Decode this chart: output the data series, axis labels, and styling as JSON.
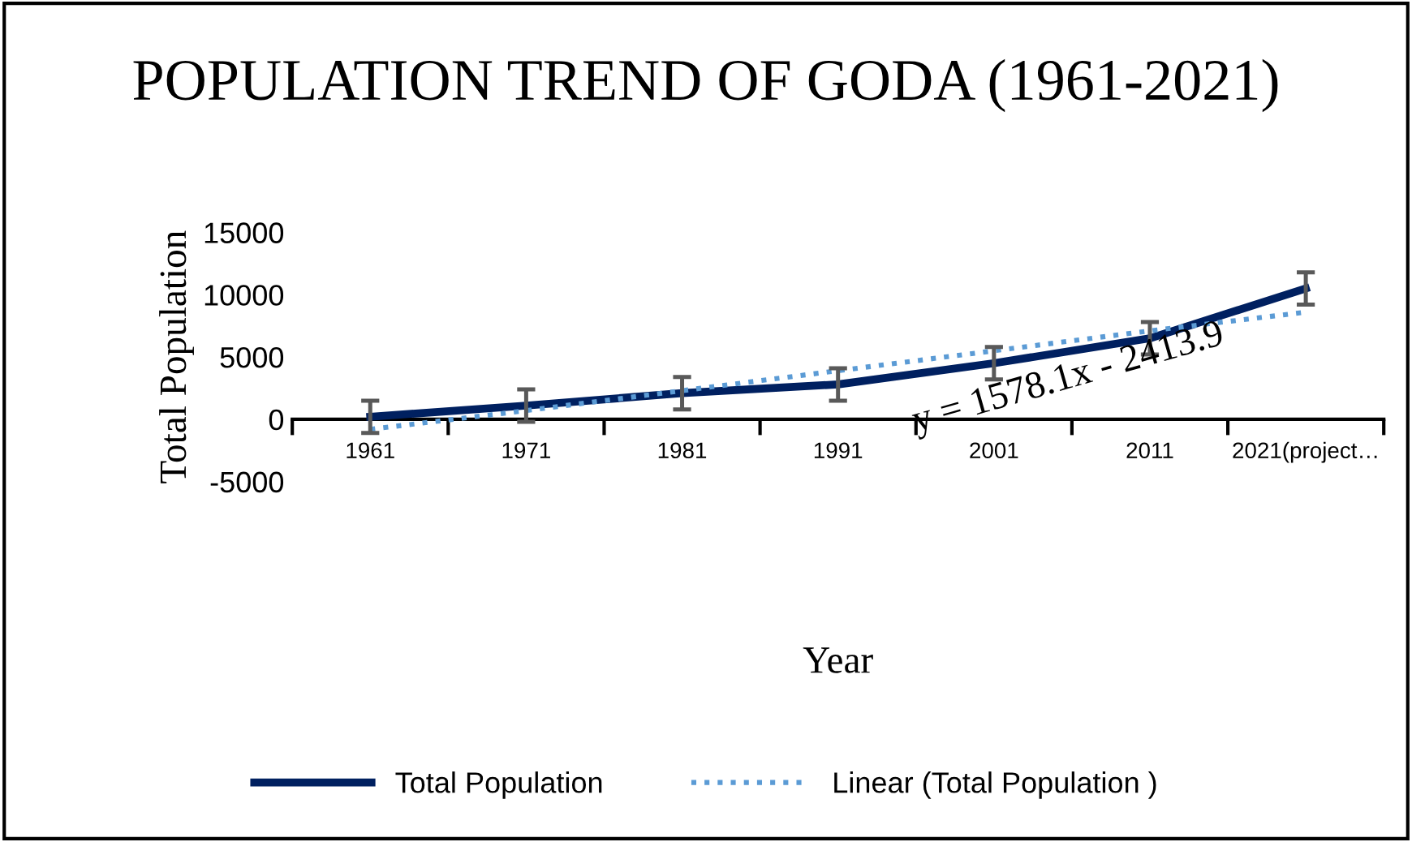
{
  "chart_data": {
    "type": "line",
    "title": "POPULATION TREND OF GODA (1961-2021)",
    "xlabel": "Year",
    "ylabel": "Total Population",
    "categories": [
      "1961",
      "1971",
      "1981",
      "1991",
      "2001",
      "2011",
      "2021(project…"
    ],
    "series": [
      {
        "name": "Total Population",
        "color": "#002060",
        "values": [
          200,
          1100,
          2100,
          2800,
          4500,
          6500,
          10500
        ],
        "errors": [
          1300,
          1300,
          1300,
          1300,
          1300,
          1300,
          1300
        ],
        "line_style": "solid"
      },
      {
        "name": "Linear (Total Population )",
        "color": "#5b9bd5",
        "values": [
          -800,
          700,
          2300,
          3900,
          5500,
          7100,
          8600
        ],
        "line_style": "dotted"
      }
    ],
    "ylim": [
      -5000,
      15000
    ],
    "yticks": [
      -5000,
      0,
      5000,
      10000,
      15000
    ],
    "grid": false,
    "legend": "bottom",
    "marker": "none",
    "annotations": [
      "y = 1578.1x - 2413.9"
    ]
  }
}
